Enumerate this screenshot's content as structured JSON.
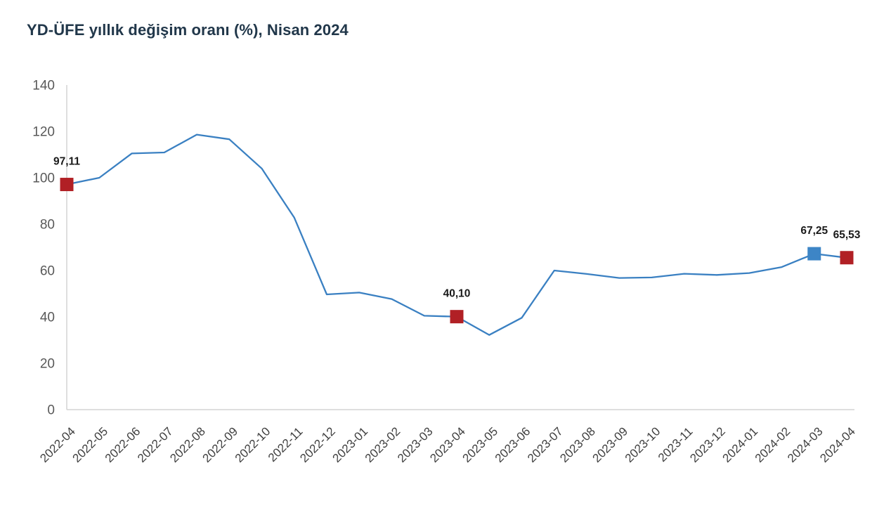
{
  "chart_data": {
    "type": "line",
    "title": "YD-ÜFE yıllık değişim oranı (%), Nisan 2024",
    "xlabel": "",
    "ylabel": "",
    "categories": [
      "2022-04",
      "2022-05",
      "2022-06",
      "2022-07",
      "2022-08",
      "2022-09",
      "2022-10",
      "2022-11",
      "2022-12",
      "2023-01",
      "2023-02",
      "2023-03",
      "2023-04",
      "2023-05",
      "2023-06",
      "2023-07",
      "2023-08",
      "2023-09",
      "2023-10",
      "2023-11",
      "2023-12",
      "2024-01",
      "2024-02",
      "2024-03",
      "2024-04"
    ],
    "values": [
      97.11,
      100.0,
      110.5,
      110.9,
      118.6,
      116.6,
      104.0,
      82.8,
      49.7,
      50.5,
      47.7,
      40.5,
      40.1,
      32.2,
      39.6,
      60.0,
      58.5,
      56.8,
      57.0,
      58.6,
      58.1,
      58.9,
      61.5,
      67.25,
      65.53
    ],
    "ylim": [
      0,
      140
    ],
    "yticks": [
      0,
      20,
      40,
      60,
      80,
      100,
      120,
      140
    ],
    "grid": false,
    "legend": false,
    "annotations": [
      {
        "category": "2022-04",
        "value": 97.11,
        "label": "97,11",
        "marker_color": "#b12025"
      },
      {
        "category": "2023-04",
        "value": 40.1,
        "label": "40,10",
        "marker_color": "#b12025"
      },
      {
        "category": "2024-03",
        "value": 67.25,
        "label": "67,25",
        "marker_color": "#3d85c6"
      },
      {
        "category": "2024-04",
        "value": 65.53,
        "label": "65,53",
        "marker_color": "#b12025"
      }
    ],
    "colors": {
      "line": "#3a80c2",
      "axis": "#d3d3d3",
      "y_tick_label": "#595959",
      "x_tick_label": "#3f3f3f",
      "data_label": "#1a1a1a",
      "title": "#21374a",
      "background": "#ffffff"
    }
  }
}
